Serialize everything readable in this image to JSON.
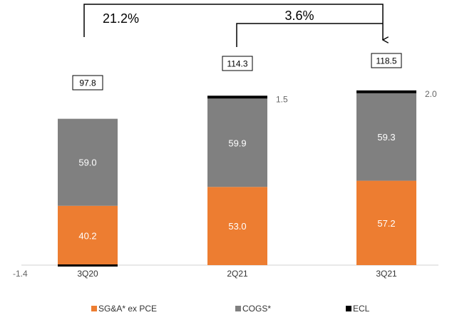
{
  "chart_data": {
    "type": "bar",
    "stacked": true,
    "categories": [
      "3Q20",
      "2Q21",
      "3Q21"
    ],
    "series": [
      {
        "name": "SG&A* ex PCE",
        "color": "#ED7D31",
        "values": [
          40.2,
          53.0,
          57.2
        ],
        "labels": [
          "40.2",
          "53.0",
          "57.2"
        ]
      },
      {
        "name": "COGS*",
        "color": "#808080",
        "values": [
          59.0,
          59.9,
          59.3
        ],
        "labels": [
          "59.0",
          "59.9",
          "59.3"
        ]
      },
      {
        "name": "ECL",
        "color": "#000000",
        "values": [
          -1.4,
          1.5,
          2.0
        ],
        "labels": [
          "-1.4",
          "1.5",
          "2.0"
        ]
      }
    ],
    "totals": [
      "97.8",
      "114.3",
      "118.5"
    ],
    "growth": [
      {
        "from": "3Q20",
        "to": "3Q21",
        "label": "21.2%"
      },
      {
        "from": "2Q21",
        "to": "3Q21",
        "label": "3.6%"
      }
    ],
    "legend_position": "bottom",
    "grid": false
  }
}
